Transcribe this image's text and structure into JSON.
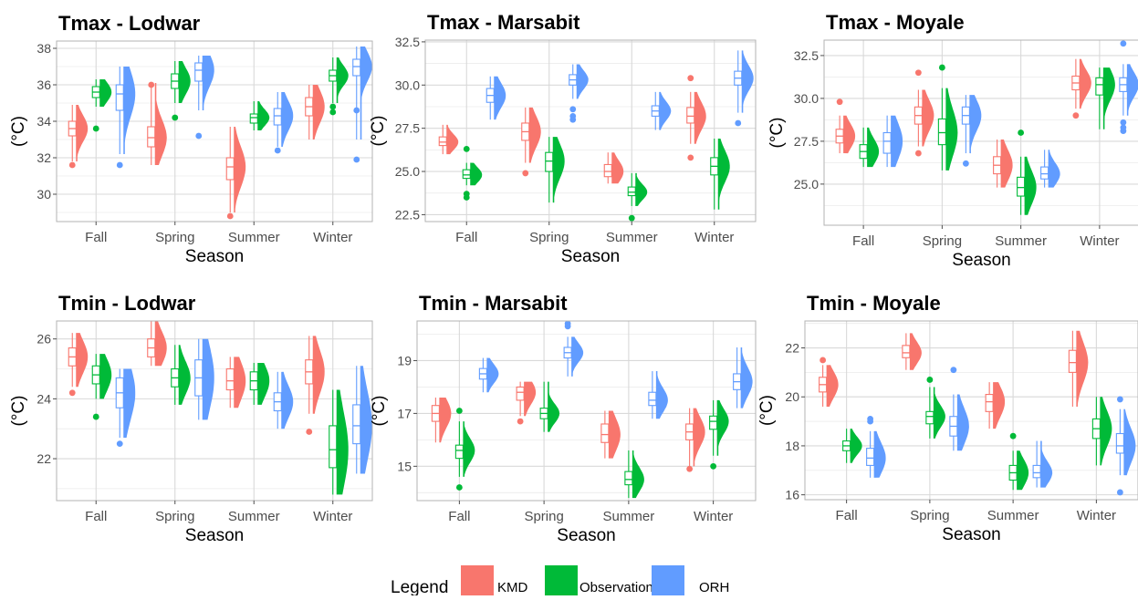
{
  "legend": {
    "title": "Legend",
    "entries": [
      {
        "label": "KMD",
        "color": "#F8766D"
      },
      {
        "label": "Observations",
        "color": "#00BA38"
      },
      {
        "label": "ORH",
        "color": "#619CFF"
      }
    ]
  },
  "chart_data": [
    {
      "type": "box-violin",
      "title": "Tmax - Lodwar",
      "xlabel": "Season",
      "ylabel": "(°C)",
      "categories": [
        "Fall",
        "Spring",
        "Summer",
        "Winter"
      ],
      "ylim": [
        28.5,
        38.4
      ],
      "yticks": [
        30,
        32,
        34,
        36,
        38
      ],
      "series": [
        {
          "name": "KMD",
          "stats": [
            {
              "min": 31.8,
              "q1": 33.2,
              "median": 33.6,
              "q3": 34.0,
              "max": 34.9,
              "outliers": [
                31.6
              ]
            },
            {
              "min": 31.6,
              "q1": 32.6,
              "median": 33.1,
              "q3": 33.7,
              "max": 36.1,
              "outliers": [
                36.0
              ]
            },
            {
              "min": 29.0,
              "q1": 30.8,
              "median": 31.5,
              "q3": 32.0,
              "max": 33.7,
              "outliers": [
                28.8
              ]
            },
            {
              "min": 33.0,
              "q1": 34.3,
              "median": 34.8,
              "q3": 35.3,
              "max": 36.0,
              "outliers": []
            }
          ]
        },
        {
          "name": "Observations",
          "stats": [
            {
              "min": 34.8,
              "q1": 35.3,
              "median": 35.6,
              "q3": 35.9,
              "max": 36.3,
              "outliers": [
                33.6
              ]
            },
            {
              "min": 35.0,
              "q1": 35.8,
              "median": 36.2,
              "q3": 36.6,
              "max": 37.3,
              "outliers": [
                34.2
              ]
            },
            {
              "min": 33.5,
              "q1": 33.9,
              "median": 34.2,
              "q3": 34.4,
              "max": 35.1,
              "outliers": []
            },
            {
              "min": 35.0,
              "q1": 36.2,
              "median": 36.5,
              "q3": 36.8,
              "max": 37.5,
              "outliers": [
                34.8,
                34.5
              ]
            }
          ]
        },
        {
          "name": "ORH",
          "stats": [
            {
              "min": 32.2,
              "q1": 34.6,
              "median": 35.5,
              "q3": 36.0,
              "max": 37.0,
              "outliers": [
                31.6
              ]
            },
            {
              "min": 34.6,
              "q1": 36.2,
              "median": 36.8,
              "q3": 37.2,
              "max": 37.6,
              "outliers": [
                33.2
              ]
            },
            {
              "min": 32.6,
              "q1": 33.8,
              "median": 34.3,
              "q3": 34.7,
              "max": 35.6,
              "outliers": [
                32.4
              ]
            },
            {
              "min": 33.0,
              "q1": 36.5,
              "median": 37.0,
              "q3": 37.4,
              "max": 38.1,
              "outliers": [
                34.6,
                31.9
              ]
            }
          ]
        }
      ]
    },
    {
      "type": "box-violin",
      "title": "Tmax - Marsabit",
      "xlabel": "Season",
      "ylabel": "(°C)",
      "categories": [
        "Fall",
        "Spring",
        "Summer",
        "Winter"
      ],
      "ylim": [
        22.1,
        32.6
      ],
      "yticks": [
        22.5,
        25.0,
        27.5,
        30.0,
        32.5
      ],
      "ytick_labels": [
        "22.5",
        "25.0",
        "27.5",
        "30.0",
        "32.5"
      ],
      "series": [
        {
          "name": "KMD",
          "stats": [
            {
              "min": 26.0,
              "q1": 26.5,
              "median": 26.7,
              "q3": 27.0,
              "max": 27.7,
              "outliers": []
            },
            {
              "min": 25.5,
              "q1": 26.8,
              "median": 27.3,
              "q3": 27.8,
              "max": 28.7,
              "outliers": [
                24.9
              ]
            },
            {
              "min": 24.3,
              "q1": 24.7,
              "median": 25.0,
              "q3": 25.4,
              "max": 26.1,
              "outliers": []
            },
            {
              "min": 26.6,
              "q1": 27.8,
              "median": 28.2,
              "q3": 28.7,
              "max": 29.6,
              "outliers": [
                30.4,
                25.8
              ]
            }
          ]
        },
        {
          "name": "Observations",
          "stats": [
            {
              "min": 24.2,
              "q1": 24.6,
              "median": 24.8,
              "q3": 25.1,
              "max": 25.5,
              "outliers": [
                26.3,
                23.7,
                23.5
              ]
            },
            {
              "min": 23.2,
              "q1": 25.0,
              "median": 25.6,
              "q3": 26.1,
              "max": 27.0,
              "outliers": []
            },
            {
              "min": 23.0,
              "q1": 23.6,
              "median": 23.8,
              "q3": 24.1,
              "max": 24.9,
              "outliers": [
                22.3
              ]
            },
            {
              "min": 22.8,
              "q1": 24.8,
              "median": 25.3,
              "q3": 25.8,
              "max": 26.9,
              "outliers": []
            }
          ]
        },
        {
          "name": "ORH",
          "stats": [
            {
              "min": 28.0,
              "q1": 29.0,
              "median": 29.4,
              "q3": 29.8,
              "max": 30.5,
              "outliers": []
            },
            {
              "min": 29.2,
              "q1": 30.0,
              "median": 30.3,
              "q3": 30.6,
              "max": 31.2,
              "outliers": [
                28.6,
                28.2,
                28.0
              ]
            },
            {
              "min": 27.4,
              "q1": 28.2,
              "median": 28.5,
              "q3": 28.8,
              "max": 29.6,
              "outliers": []
            },
            {
              "min": 28.4,
              "q1": 30.0,
              "median": 30.4,
              "q3": 30.8,
              "max": 32.0,
              "outliers": [
                27.8
              ]
            }
          ]
        }
      ]
    },
    {
      "type": "box-violin",
      "title": "Tmax - Moyale",
      "xlabel": "Season",
      "ylabel": "(°C)",
      "categories": [
        "Fall",
        "Spring",
        "Summer",
        "Winter"
      ],
      "ylim": [
        22.6,
        33.4
      ],
      "yticks": [
        25.0,
        27.5,
        30.0,
        32.5
      ],
      "ytick_labels": [
        "25.0",
        "27.5",
        "30.0",
        "32.5"
      ],
      "series": [
        {
          "name": "KMD",
          "stats": [
            {
              "min": 26.8,
              "q1": 27.4,
              "median": 27.8,
              "q3": 28.2,
              "max": 29.0,
              "outliers": [
                29.8
              ]
            },
            {
              "min": 27.2,
              "q1": 28.5,
              "median": 29.0,
              "q3": 29.5,
              "max": 30.5,
              "outliers": [
                31.5,
                26.8
              ]
            },
            {
              "min": 24.8,
              "q1": 25.6,
              "median": 26.1,
              "q3": 26.6,
              "max": 27.6,
              "outliers": []
            },
            {
              "min": 29.4,
              "q1": 30.5,
              "median": 30.9,
              "q3": 31.3,
              "max": 32.3,
              "outliers": [
                29.0
              ]
            }
          ]
        },
        {
          "name": "Observations",
          "stats": [
            {
              "min": 26.0,
              "q1": 26.5,
              "median": 26.9,
              "q3": 27.3,
              "max": 28.3,
              "outliers": []
            },
            {
              "min": 25.8,
              "q1": 27.3,
              "median": 28.0,
              "q3": 28.8,
              "max": 30.6,
              "outliers": [
                31.8
              ]
            },
            {
              "min": 23.2,
              "q1": 24.3,
              "median": 24.8,
              "q3": 25.4,
              "max": 26.6,
              "outliers": [
                28.0
              ]
            },
            {
              "min": 28.2,
              "q1": 30.2,
              "median": 30.8,
              "q3": 31.2,
              "max": 31.8,
              "outliers": []
            }
          ]
        },
        {
          "name": "ORH",
          "stats": [
            {
              "min": 26.0,
              "q1": 26.8,
              "median": 27.5,
              "q3": 28.0,
              "max": 29.0,
              "outliers": []
            },
            {
              "min": 26.8,
              "q1": 28.5,
              "median": 29.0,
              "q3": 29.5,
              "max": 30.2,
              "outliers": [
                26.2
              ]
            },
            {
              "min": 24.8,
              "q1": 25.3,
              "median": 25.6,
              "q3": 26.0,
              "max": 27.0,
              "outliers": []
            },
            {
              "min": 29.0,
              "q1": 30.4,
              "median": 30.8,
              "q3": 31.2,
              "max": 32.0,
              "outliers": [
                33.2,
                28.6,
                28.3,
                28.1
              ]
            }
          ]
        }
      ]
    },
    {
      "type": "box-violin",
      "title": "Tmin - Lodwar",
      "xlabel": "Season",
      "ylabel": "(°C)",
      "categories": [
        "Fall",
        "Spring",
        "Summer",
        "Winter"
      ],
      "ylim": [
        20.6,
        26.6
      ],
      "yticks": [
        22,
        24,
        26
      ],
      "series": [
        {
          "name": "KMD",
          "stats": [
            {
              "min": 24.4,
              "q1": 25.1,
              "median": 25.4,
              "q3": 25.7,
              "max": 26.2,
              "outliers": [
                24.2
              ]
            },
            {
              "min": 25.1,
              "q1": 25.4,
              "median": 25.7,
              "q3": 26.0,
              "max": 26.6,
              "outliers": []
            },
            {
              "min": 23.7,
              "q1": 24.3,
              "median": 24.6,
              "q3": 25.0,
              "max": 25.4,
              "outliers": []
            },
            {
              "min": 23.5,
              "q1": 24.5,
              "median": 24.9,
              "q3": 25.3,
              "max": 26.1,
              "outliers": [
                22.9
              ]
            }
          ]
        },
        {
          "name": "Observations",
          "stats": [
            {
              "min": 24.0,
              "q1": 24.5,
              "median": 24.8,
              "q3": 25.1,
              "max": 25.5,
              "outliers": [
                23.4
              ]
            },
            {
              "min": 23.8,
              "q1": 24.4,
              "median": 24.7,
              "q3": 25.0,
              "max": 25.8,
              "outliers": []
            },
            {
              "min": 23.8,
              "q1": 24.3,
              "median": 24.6,
              "q3": 24.9,
              "max": 25.2,
              "outliers": []
            },
            {
              "min": 20.8,
              "q1": 21.7,
              "median": 22.3,
              "q3": 23.1,
              "max": 24.3,
              "outliers": []
            }
          ]
        },
        {
          "name": "ORH",
          "stats": [
            {
              "min": 22.7,
              "q1": 23.7,
              "median": 24.2,
              "q3": 24.7,
              "max": 25.0,
              "outliers": [
                22.5
              ]
            },
            {
              "min": 23.3,
              "q1": 24.1,
              "median": 24.7,
              "q3": 25.3,
              "max": 26.0,
              "outliers": []
            },
            {
              "min": 23.0,
              "q1": 23.6,
              "median": 23.9,
              "q3": 24.2,
              "max": 24.9,
              "outliers": []
            },
            {
              "min": 21.5,
              "q1": 22.5,
              "median": 23.1,
              "q3": 23.8,
              "max": 25.1,
              "outliers": []
            }
          ]
        }
      ]
    },
    {
      "type": "box-violin",
      "title": "Tmin - Marsabit",
      "xlabel": "Season",
      "ylabel": "(°C)",
      "categories": [
        "Fall",
        "Spring",
        "Summer",
        "Winter"
      ],
      "ylim": [
        13.7,
        20.5
      ],
      "yticks": [
        15,
        17,
        19
      ],
      "series": [
        {
          "name": "KMD",
          "stats": [
            {
              "min": 15.9,
              "q1": 16.7,
              "median": 17.0,
              "q3": 17.3,
              "max": 17.6,
              "outliers": []
            },
            {
              "min": 16.9,
              "q1": 17.5,
              "median": 17.8,
              "q3": 18.0,
              "max": 18.2,
              "outliers": [
                16.7
              ]
            },
            {
              "min": 15.3,
              "q1": 15.9,
              "median": 16.2,
              "q3": 16.6,
              "max": 17.1,
              "outliers": []
            },
            {
              "min": 15.0,
              "q1": 16.0,
              "median": 16.3,
              "q3": 16.6,
              "max": 17.2,
              "outliers": [
                14.9
              ]
            }
          ]
        },
        {
          "name": "Observations",
          "stats": [
            {
              "min": 14.6,
              "q1": 15.3,
              "median": 15.6,
              "q3": 15.8,
              "max": 16.7,
              "outliers": [
                17.1,
                14.2
              ]
            },
            {
              "min": 16.3,
              "q1": 16.8,
              "median": 17.0,
              "q3": 17.2,
              "max": 18.2,
              "outliers": []
            },
            {
              "min": 13.8,
              "q1": 14.3,
              "median": 14.5,
              "q3": 14.8,
              "max": 15.6,
              "outliers": []
            },
            {
              "min": 15.4,
              "q1": 16.4,
              "median": 16.7,
              "q3": 16.9,
              "max": 17.5,
              "outliers": [
                15.0
              ]
            }
          ]
        },
        {
          "name": "ORH",
          "stats": [
            {
              "min": 17.8,
              "q1": 18.3,
              "median": 18.5,
              "q3": 18.7,
              "max": 19.1,
              "outliers": []
            },
            {
              "min": 18.4,
              "q1": 19.1,
              "median": 19.3,
              "q3": 19.5,
              "max": 19.9,
              "outliers": [
                20.4,
                20.3
              ]
            },
            {
              "min": 16.8,
              "q1": 17.3,
              "median": 17.5,
              "q3": 17.8,
              "max": 18.6,
              "outliers": []
            },
            {
              "min": 17.2,
              "q1": 17.9,
              "median": 18.2,
              "q3": 18.5,
              "max": 19.5,
              "outliers": []
            }
          ]
        }
      ]
    },
    {
      "type": "box-violin",
      "title": "Tmin - Moyale",
      "xlabel": "Season",
      "ylabel": "(°C)",
      "categories": [
        "Fall",
        "Spring",
        "Summer",
        "Winter"
      ],
      "ylim": [
        15.8,
        23.1
      ],
      "yticks": [
        16,
        18,
        20,
        22
      ],
      "series": [
        {
          "name": "KMD",
          "stats": [
            {
              "min": 19.6,
              "q1": 20.2,
              "median": 20.5,
              "q3": 20.8,
              "max": 21.3,
              "outliers": [
                21.5
              ]
            },
            {
              "min": 21.1,
              "q1": 21.6,
              "median": 21.8,
              "q3": 22.1,
              "max": 22.6,
              "outliers": []
            },
            {
              "min": 18.7,
              "q1": 19.4,
              "median": 19.8,
              "q3": 20.1,
              "max": 20.6,
              "outliers": []
            },
            {
              "min": 19.6,
              "q1": 21.0,
              "median": 21.4,
              "q3": 21.9,
              "max": 22.7,
              "outliers": []
            }
          ]
        },
        {
          "name": "Observations",
          "stats": [
            {
              "min": 17.3,
              "q1": 17.8,
              "median": 18.0,
              "q3": 18.2,
              "max": 18.7,
              "outliers": []
            },
            {
              "min": 18.3,
              "q1": 18.9,
              "median": 19.2,
              "q3": 19.4,
              "max": 20.4,
              "outliers": [
                20.7
              ]
            },
            {
              "min": 16.2,
              "q1": 16.6,
              "median": 16.9,
              "q3": 17.2,
              "max": 17.8,
              "outliers": [
                18.4
              ]
            },
            {
              "min": 17.2,
              "q1": 18.3,
              "median": 18.7,
              "q3": 19.1,
              "max": 20.0,
              "outliers": []
            }
          ]
        },
        {
          "name": "ORH",
          "stats": [
            {
              "min": 16.7,
              "q1": 17.2,
              "median": 17.5,
              "q3": 17.9,
              "max": 18.6,
              "outliers": [
                19.1,
                19.0
              ]
            },
            {
              "min": 17.8,
              "q1": 18.4,
              "median": 18.8,
              "q3": 19.2,
              "max": 20.1,
              "outliers": [
                21.1
              ]
            },
            {
              "min": 16.3,
              "q1": 16.7,
              "median": 16.9,
              "q3": 17.2,
              "max": 18.2,
              "outliers": []
            },
            {
              "min": 16.8,
              "q1": 17.7,
              "median": 18.0,
              "q3": 18.5,
              "max": 19.5,
              "outliers": [
                19.9,
                16.1
              ]
            }
          ]
        }
      ]
    }
  ]
}
